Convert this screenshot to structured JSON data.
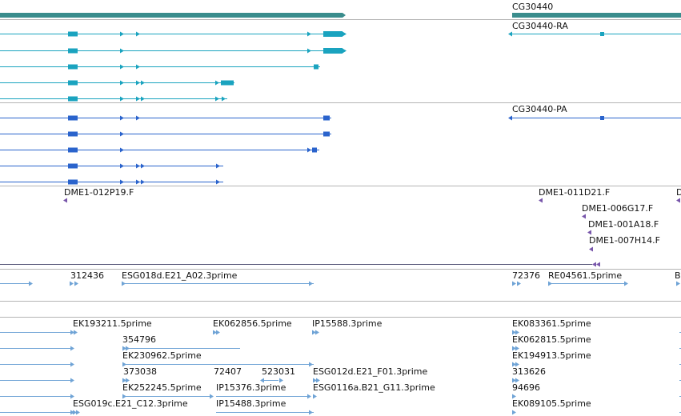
{
  "gene_track": {
    "gene_label": "CG30440",
    "color": "#3a8d8d"
  },
  "transcript_track": {
    "color": "#1aa3bf",
    "row_count": 5,
    "label": "CG30440-RA"
  },
  "protein_track": {
    "color": "#2a63cc",
    "row_count": 5,
    "label": "CG30440-PA"
  },
  "probe_track": {
    "color": "#7755aa",
    "labels": [
      "DME1-012P19.F",
      "DME1-011D21.F",
      "D",
      "DME1-006G17.F",
      "DME1-001A18.F",
      "DME1-007H14.F"
    ]
  },
  "est_track": {
    "color": "#6fa3d6",
    "row1_labels": [
      "312436",
      "ESG018d.E21_A02.3prime",
      "72376",
      "RE04561.5prime",
      "B"
    ],
    "lower_labels": [
      "EK193211.5prime",
      "EK062856.5prime",
      "IP15588.3prime",
      "EK083361.5prime",
      "354796",
      "EK062815.5prime",
      "EK230962.5prime",
      "EK194913.5prime",
      "373038",
      "72407",
      "523031",
      "ESG012d.E21_F01.3prime",
      "313626",
      "EK252245.5prime",
      "IP15376.3prime",
      "ESG0116a.B21_G11.3prime",
      "94696",
      "ESG019c.E21_C12.3prime",
      "IP15488.3prime",
      "EK089105.5prime"
    ]
  },
  "separator_color": "#b4b4b4"
}
